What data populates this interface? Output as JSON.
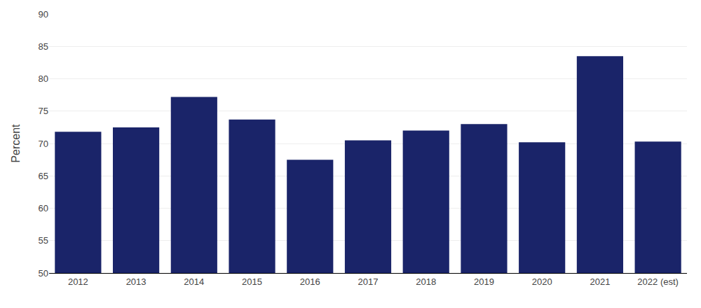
{
  "chart_data": {
    "type": "bar",
    "categories": [
      "2012",
      "2013",
      "2014",
      "2015",
      "2016",
      "2017",
      "2018",
      "2019",
      "2020",
      "2021",
      "2022 (est)"
    ],
    "values": [
      71.8,
      72.5,
      77.2,
      73.7,
      67.5,
      70.5,
      72.0,
      73.0,
      70.2,
      83.5,
      70.3
    ],
    "color": "#1a2469",
    "ylabel": "Percent",
    "ylim": [
      50,
      90
    ],
    "yticks": [
      50,
      55,
      60,
      65,
      70,
      75,
      80,
      85,
      90
    ],
    "grid": true
  }
}
